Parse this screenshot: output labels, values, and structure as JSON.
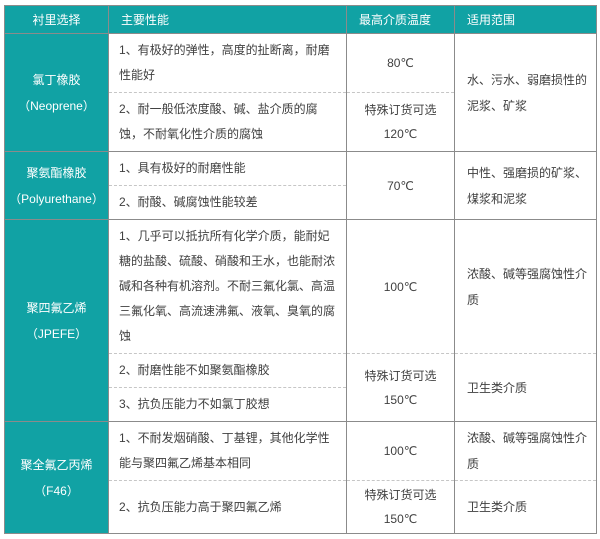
{
  "colors": {
    "teal_accent": "#11a2a4",
    "border_solid": "#8b8b8b",
    "border_dashed": "#c6c6c6",
    "body_text": "#3f3f3f",
    "header_text": "#ffffff"
  },
  "table": {
    "headers": {
      "lining": "衬里选择",
      "performance": "主要性能",
      "max_temp": "最高介质温度",
      "range": "适用范围"
    },
    "materials": [
      {
        "name_cn": "氯丁橡胶",
        "name_en": "（Neoprene）",
        "perf1": "1、有极好的弹性，高度的扯断离，耐磨性能好",
        "perf2": "2、耐一般低浓度酸、碱、盐介质的腐蚀，不耐氧化性介质的腐蚀",
        "temp1": "80℃",
        "temp2_l1": "特殊订货可选",
        "temp2_l2": "120℃",
        "range": "水、污水、弱磨损性的泥浆、矿浆"
      },
      {
        "name_cn": "聚氨酯橡胶",
        "name_en": "（Polyurethane）",
        "perf1": "1、具有极好的耐磨性能",
        "perf2": "2、耐酸、碱腐蚀性能较差",
        "temp": "70℃",
        "range": "中性、强磨损的矿浆、煤浆和泥浆"
      },
      {
        "name_cn": "聚四氟乙烯",
        "name_en": "（JPEFE）",
        "perf1": "1、几乎可以抵抗所有化学介质，能耐妃糖的盐酸、硫酸、硝酸和王水，也能耐浓碱和各种有机溶剂。不耐三氟化氯、高温三氟化氧、高流速沸氟、液氧、臭氧的腐蚀",
        "perf2": "2、耐磨性能不如聚氨酯橡胶",
        "perf3": "3、抗负压能力不如氯丁胶想",
        "temp1": "100℃",
        "temp2_l1": "特殊订货可选",
        "temp2_l2": "150℃",
        "range1": "浓酸、碱等强腐蚀性介质",
        "range2": "卫生类介质"
      },
      {
        "name_cn": "聚全氟乙丙烯",
        "name_en": "（F46）",
        "perf1": "1、不耐发烟硝酸、丁基锂，其他化学性能与聚四氟乙烯基本相同",
        "perf2": "2、抗负压能力高于聚四氟乙烯",
        "temp1": "100℃",
        "temp2_l1": "特殊订货可选",
        "temp2_l2": "150℃",
        "range1": "浓酸、碱等强腐蚀性介质",
        "range2": "卫生类介质"
      }
    ]
  }
}
